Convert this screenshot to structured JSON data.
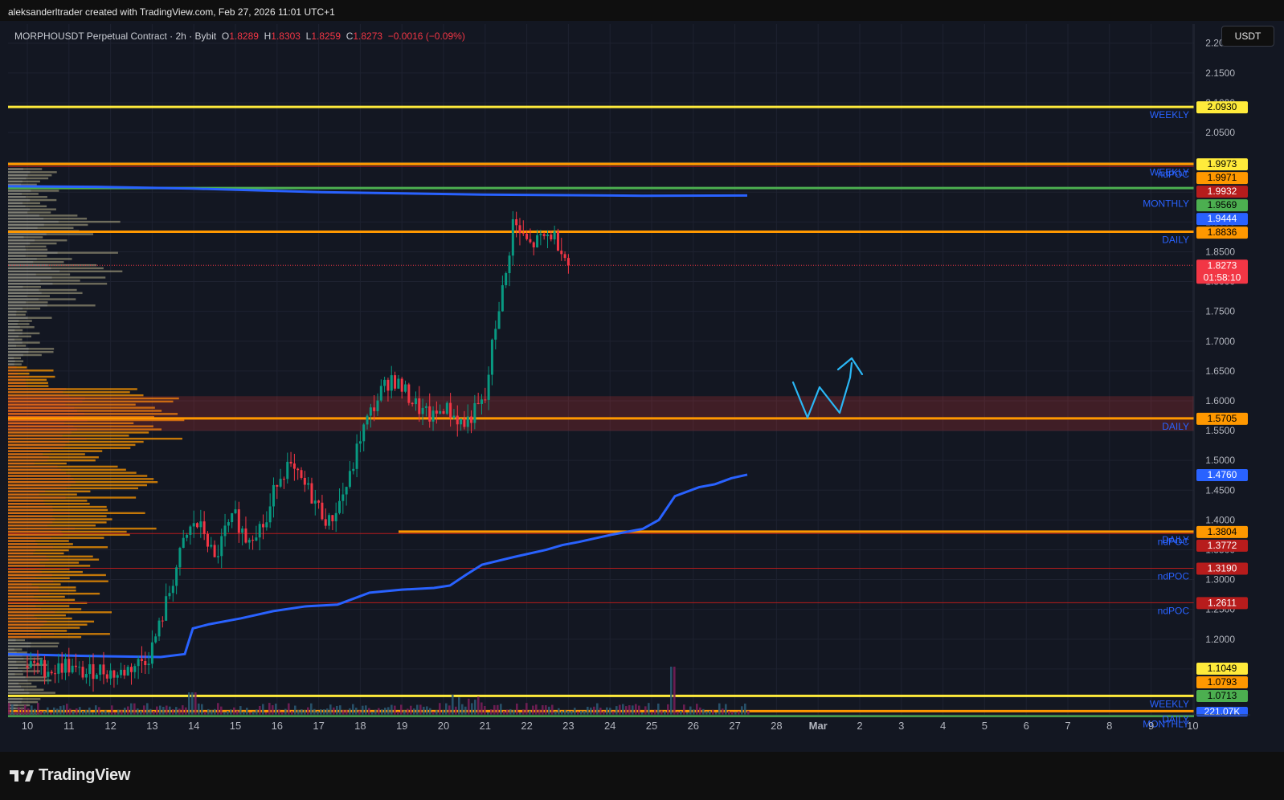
{
  "header": {
    "attribution": "aleksanderltrader created with TradingView.com, Feb 27, 2026 11:01 UTC+1"
  },
  "footer": {
    "brand": "TradingView"
  },
  "currency_button": "USDT",
  "legend": {
    "symbol": "MORPHOUSDT Perpetual Contract · 2h · Bybit",
    "o_label": "O",
    "o_value": "1.8289",
    "h_label": "H",
    "h_value": "1.8303",
    "l_label": "L",
    "l_value": "1.8259",
    "c_label": "C",
    "c_value": "1.8273",
    "change": "−0.0016 (−0.09%)"
  },
  "colors": {
    "background": "#131722",
    "up": "#089981",
    "down": "#f23645",
    "yellow_level": "#ffeb3b",
    "orange_level": "#ff9800",
    "green_level": "#4caf50",
    "vwap_blue": "#2962ff",
    "drawing_blue": "#2ab7f5",
    "red_line": "#b71c1c",
    "zone": "#e53935"
  },
  "chart_data": {
    "type": "candlestick",
    "title": "MORPHOUSDT Perpetual Contract · 2h · Bybit",
    "ylim": [
      1.073,
      2.232
    ],
    "y_ticks": [
      "2.2000",
      "2.1500",
      "2.1000",
      "2.0500",
      "2.0000",
      "1.9500",
      "1.9000",
      "1.8500",
      "1.8000",
      "1.7500",
      "1.7000",
      "1.6500",
      "1.6000",
      "1.5500",
      "1.5000",
      "1.4500",
      "1.4000",
      "1.3500",
      "1.3000",
      "1.2500",
      "1.2000",
      "1.1500"
    ],
    "x_ticks": [
      "10",
      "11",
      "12",
      "13",
      "14",
      "15",
      "16",
      "17",
      "18",
      "19",
      "20",
      "21",
      "22",
      "23",
      "24",
      "25",
      "26",
      "27",
      "28",
      "Mar",
      "2",
      "3",
      "4",
      "5",
      "6",
      "7",
      "8",
      "9",
      "10"
    ],
    "close_path": [
      [
        0,
        1.155
      ],
      [
        4,
        1.152
      ],
      [
        8,
        1.148
      ],
      [
        11,
        1.158
      ],
      [
        14,
        1.145
      ],
      [
        17,
        1.142
      ],
      [
        20,
        1.15
      ],
      [
        23,
        1.146
      ],
      [
        26,
        1.14
      ],
      [
        29,
        1.15
      ],
      [
        32,
        1.16
      ],
      [
        35,
        1.172
      ],
      [
        38,
        1.22
      ],
      [
        39,
        1.24
      ],
      [
        42,
        1.3
      ],
      [
        45,
        1.36
      ],
      [
        48,
        1.395
      ],
      [
        51,
        1.38
      ],
      [
        54,
        1.33
      ],
      [
        57,
        1.38
      ],
      [
        60,
        1.405
      ],
      [
        63,
        1.37
      ],
      [
        66,
        1.385
      ],
      [
        69,
        1.395
      ],
      [
        72,
        1.47
      ],
      [
        75,
        1.49
      ],
      [
        78,
        1.47
      ],
      [
        81,
        1.45
      ],
      [
        84,
        1.42
      ],
      [
        87,
        1.395
      ],
      [
        90,
        1.43
      ],
      [
        93,
        1.47
      ],
      [
        96,
        1.54
      ],
      [
        99,
        1.58
      ],
      [
        102,
        1.615
      ],
      [
        105,
        1.64
      ],
      [
        108,
        1.62
      ],
      [
        111,
        1.6
      ],
      [
        114,
        1.58
      ],
      [
        117,
        1.57
      ],
      [
        120,
        1.59
      ],
      [
        123,
        1.575
      ],
      [
        126,
        1.56
      ],
      [
        129,
        1.582
      ],
      [
        132,
        1.6
      ],
      [
        134,
        1.69
      ],
      [
        136,
        1.76
      ],
      [
        138,
        1.81
      ],
      [
        140,
        1.9
      ],
      [
        142,
        1.88
      ],
      [
        145,
        1.86
      ],
      [
        148,
        1.87
      ],
      [
        151,
        1.88
      ],
      [
        154,
        1.86
      ],
      [
        156,
        1.8273
      ]
    ],
    "volume_profile": "left-side volume profile histogram (orange/yellow and grey bars)",
    "horizontal_levels": [
      {
        "price": 2.093,
        "color": "yellow",
        "label": "WEEKLY",
        "tag": "2.0930"
      },
      {
        "price": 1.9973,
        "color": "yellow",
        "label": "",
        "tag": "1.9973"
      },
      {
        "price": 1.9971,
        "color": "orange",
        "label": "WEEKLY",
        "tag": "1.9971"
      },
      {
        "price": 1.9932,
        "color": "red",
        "label": "ndPOC",
        "tag": "1.9932"
      },
      {
        "price": 1.9569,
        "color": "green",
        "label": "",
        "tag": "1.9569"
      },
      {
        "price": 1.9444,
        "color": "blue",
        "label": "MONTHLY",
        "tag": "1.9444"
      },
      {
        "price": 1.8836,
        "color": "orange",
        "label": "DAILY",
        "tag": "1.8836"
      },
      {
        "price": 1.8273,
        "color": "red",
        "label": "",
        "tag": "1.8273",
        "countdown": "01:58:10"
      },
      {
        "price": 1.5705,
        "color": "orange",
        "label": "DAILY",
        "tag": "1.5705"
      },
      {
        "price": 1.476,
        "color": "blue",
        "label": "",
        "tag": "1.4760"
      },
      {
        "price": 1.3804,
        "color": "orange",
        "label": "DAILY",
        "tag": "1.3804"
      },
      {
        "price": 1.3772,
        "color": "red",
        "label": "ndPOC",
        "tag": "1.3772"
      },
      {
        "price": 1.319,
        "color": "red",
        "label": "ndPOC",
        "tag": "1.3190"
      },
      {
        "price": 1.2611,
        "color": "red",
        "label": "ndPOC",
        "tag": "1.2611"
      },
      {
        "price": 1.1049,
        "color": "yellow",
        "label": "WEEKLY",
        "tag": "1.1049"
      },
      {
        "price": 1.0793,
        "color": "orange",
        "label": "DAILY",
        "tag": "1.0793"
      },
      {
        "price": 1.0713,
        "color": "green",
        "label": "MONTHLY",
        "tag": "1.0713"
      }
    ],
    "volume_tag": "221.07K",
    "zone": {
      "from": 1.5495,
      "to": 1.6077
    },
    "drawing": "hand-drawn W pattern projection with upward arrow near 1.57–1.65"
  }
}
